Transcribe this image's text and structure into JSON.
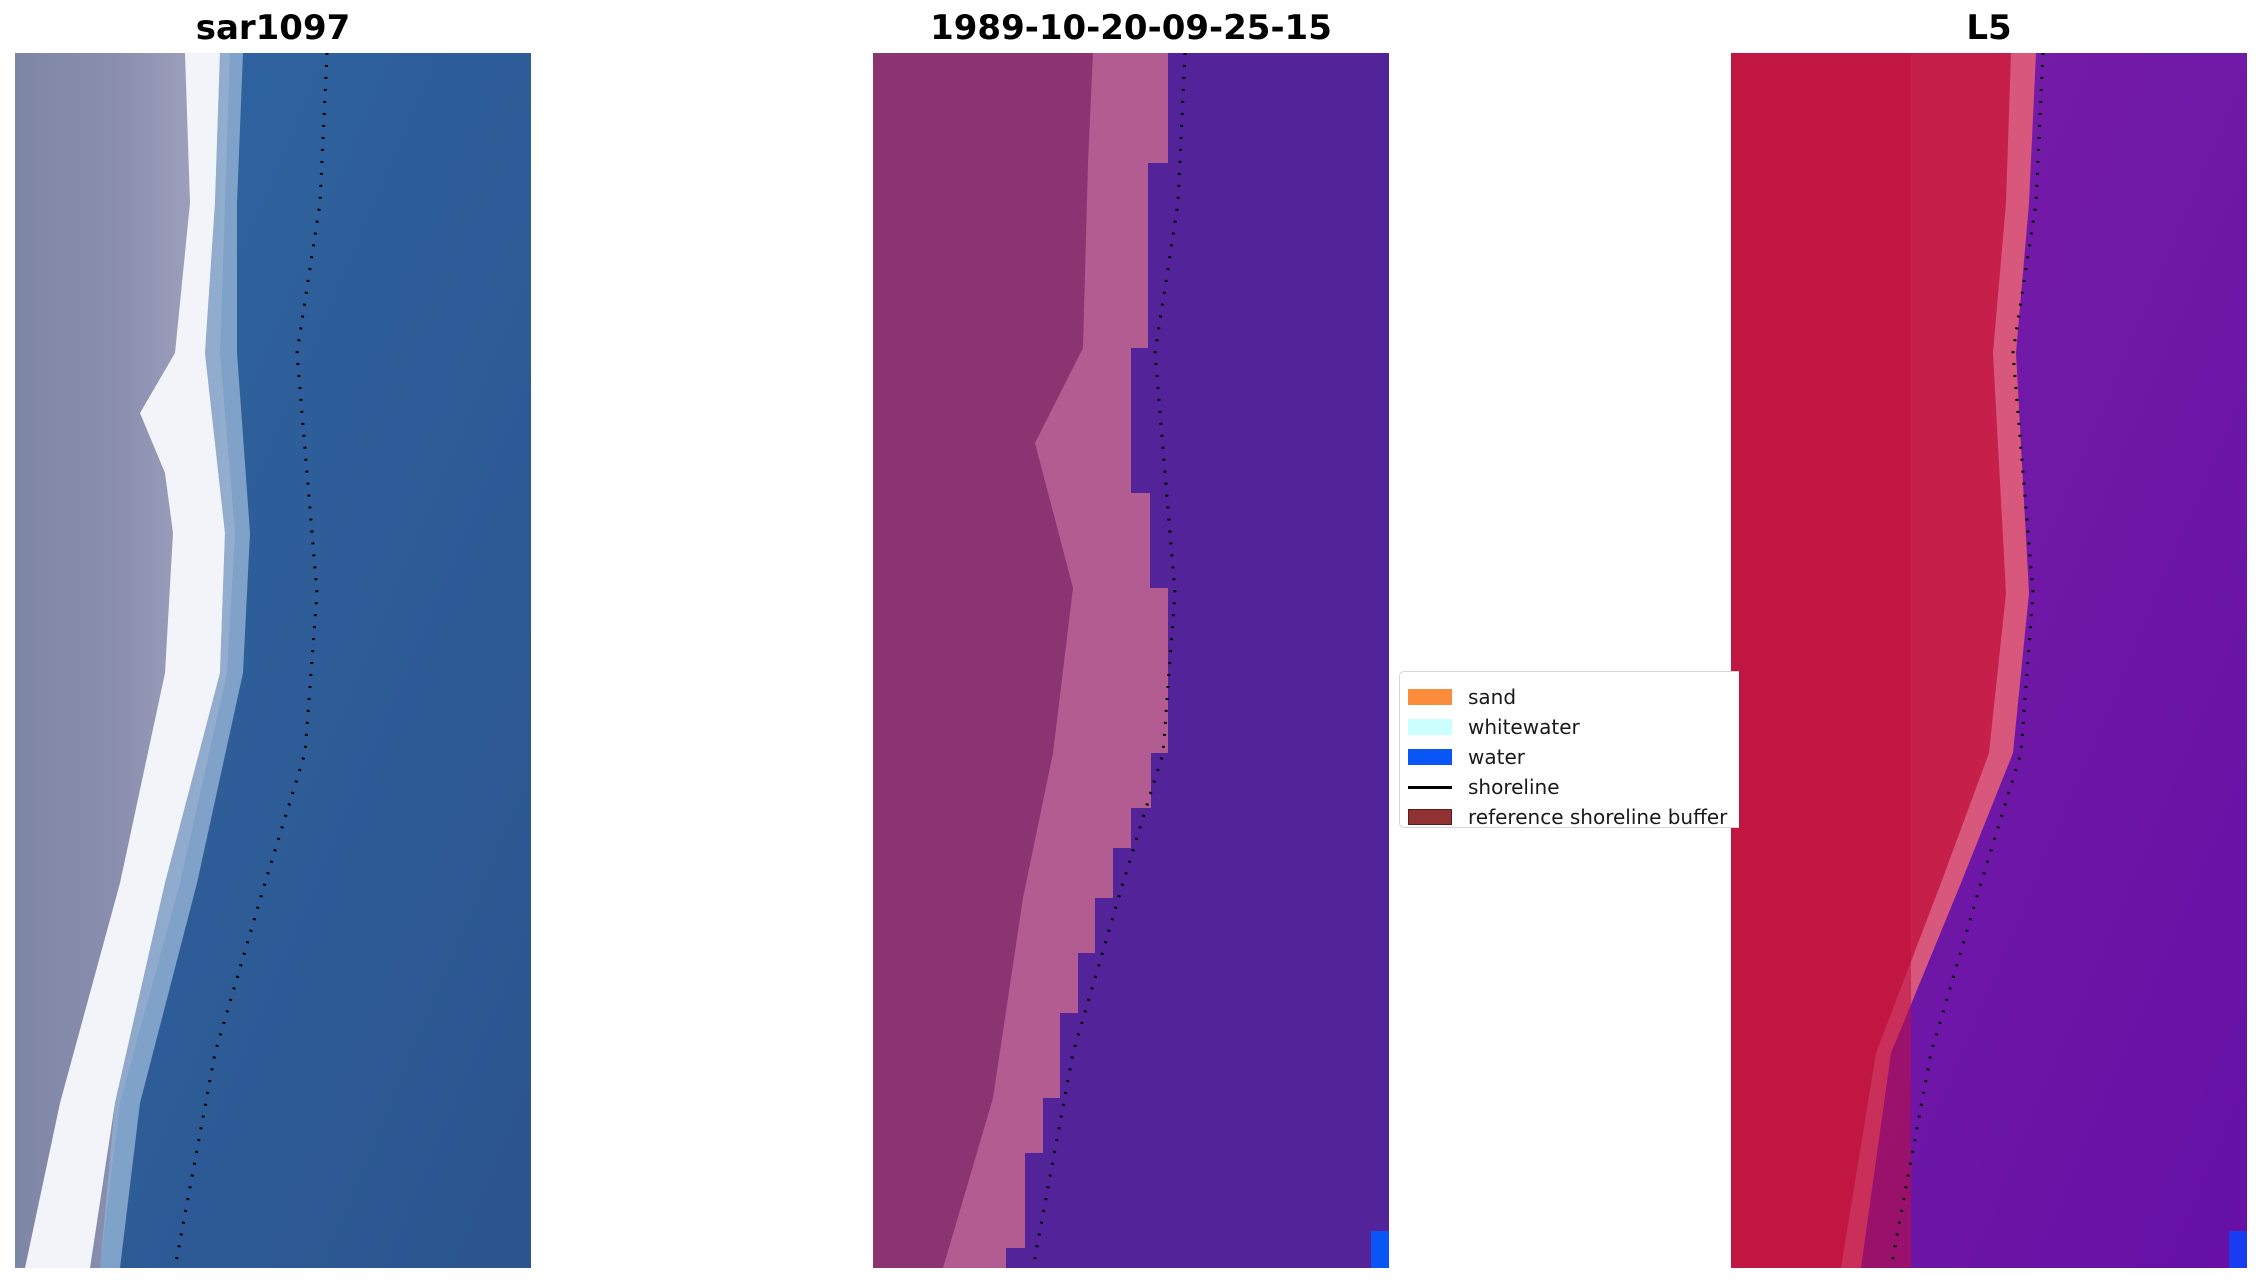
{
  "panels": [
    {
      "title": "sar1097",
      "image": "true-color satellite image"
    },
    {
      "title": "1989-10-20-09-25-15",
      "image": "classified image overlay"
    },
    {
      "title": "L5",
      "image": "false-color satellite image"
    }
  ],
  "legend": {
    "items": [
      {
        "label": "sand",
        "color": "#fa8c3c",
        "kind": "patch"
      },
      {
        "label": "whitewater",
        "color": "#ccffff",
        "kind": "patch"
      },
      {
        "label": "water",
        "color": "#0a55f5",
        "kind": "patch"
      },
      {
        "label": "shoreline",
        "color": "#000000",
        "kind": "line"
      },
      {
        "label": "reference shoreline buffer",
        "color": "#913232",
        "kind": "patch"
      }
    ]
  },
  "colors": {
    "ocean_rgb": "#2d5e96",
    "land_rgb": "#7f86a8",
    "surf_white": "#f4f4fb",
    "class_land": "#8c3273",
    "class_beach": "#b85a94",
    "class_water": "#53239a",
    "fc_land": "#c0143c",
    "fc_water": "#6b12a5"
  }
}
